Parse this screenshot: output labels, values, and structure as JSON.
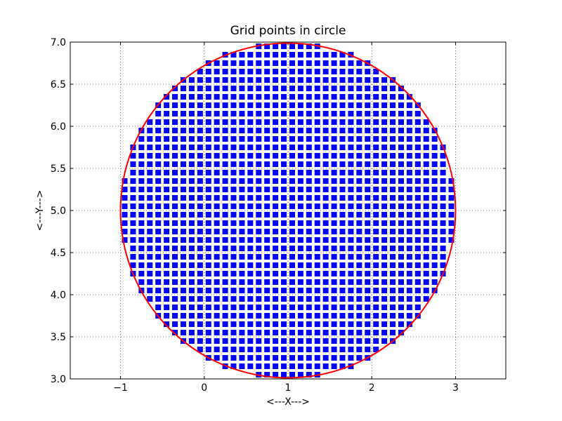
{
  "chart_data": {
    "type": "scatter",
    "title": "Grid points in circle",
    "xlabel": "<---X--->",
    "ylabel": "<---Y--->",
    "xlim": [
      -1.6,
      3.6
    ],
    "ylim": [
      3.0,
      7.0
    ],
    "xticks": [
      -1,
      0,
      1,
      2,
      3
    ],
    "xtick_labels": [
      "−1",
      "0",
      "1",
      "2",
      "3"
    ],
    "yticks": [
      3.0,
      3.5,
      4.0,
      4.5,
      5.0,
      5.5,
      6.0,
      6.5,
      7.0
    ],
    "ytick_labels": [
      "3.0",
      "3.5",
      "4.0",
      "4.5",
      "5.0",
      "5.5",
      "6.0",
      "6.5",
      "7.0"
    ],
    "grid": true,
    "circle": {
      "center": [
        1,
        5
      ],
      "radius": 2,
      "color": "#ff0000"
    },
    "points": {
      "marker": "square",
      "color": "#0000ff",
      "grid_step": 0.1,
      "x_range": [
        -0.95,
        2.95
      ],
      "y_range": [
        3.05,
        6.95
      ],
      "condition": "(x-1)^2 + (y-5)^2 <= 4"
    }
  }
}
